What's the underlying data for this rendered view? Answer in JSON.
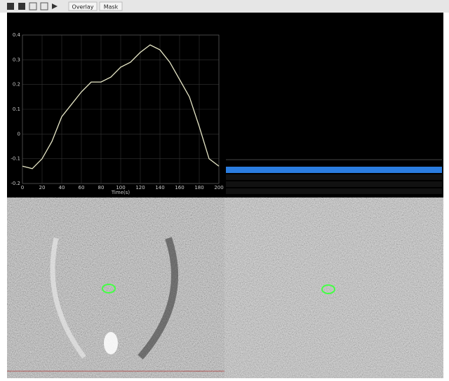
{
  "toolbar": {
    "buttons": [
      "Overlay",
      "Mask"
    ]
  },
  "chart_data": {
    "type": "line",
    "x_label": "Time(s)",
    "x": [
      0,
      10,
      20,
      30,
      40,
      50,
      60,
      70,
      80,
      90,
      100,
      110,
      120,
      130,
      140,
      150,
      160,
      170,
      180,
      190,
      200
    ],
    "series": [
      {
        "color": "#e8e8c8",
        "values": [
          -0.13,
          -0.14,
          -0.1,
          -0.03,
          0.07,
          0.12,
          0.17,
          0.21,
          0.21,
          0.23,
          0.27,
          0.29,
          0.33,
          0.36,
          0.34,
          0.29,
          0.22,
          0.15,
          0.03,
          -0.1,
          -0.13
        ]
      }
    ],
    "xlim": [
      0,
      200
    ],
    "ylim": [
      -0.2,
      0.4
    ],
    "xticks": [
      0,
      20,
      40,
      60,
      80,
      100,
      120,
      140,
      160,
      180,
      200
    ],
    "yticks": [
      -0.2,
      -0.1,
      0,
      0.1,
      0.2,
      0.3,
      0.4
    ],
    "grid": true
  }
}
